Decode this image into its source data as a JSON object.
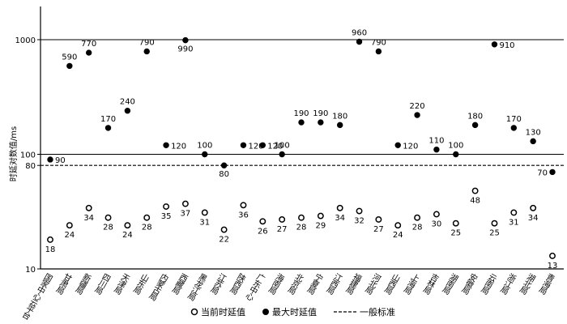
{
  "chart_data": {
    "type": "scatter",
    "ylabel": "时延对数值/ms",
    "yscale": "log",
    "ylim": [
      10,
      2000
    ],
    "yticks": [
      10,
      80,
      100,
      1000
    ],
    "categories": [
      "国家中心云平台",
      "甘肃局",
      "新疆局",
      "四川局",
      "天津局",
      "山东局",
      "内蒙古局",
      "西藏局",
      "黑龙江局",
      "江苏局",
      "陕西局",
      "广东中心",
      "海南局",
      "北京局",
      "宁夏局",
      "江西局",
      "福建局",
      "河北局",
      "山西局",
      "上海局",
      "吉林局",
      "湖南局",
      "安徽局",
      "云南局",
      "浙江局",
      "湖北局",
      "青海局"
    ],
    "series": [
      {
        "name": "当前时延值",
        "marker": "open-circle",
        "values": [
          18,
          24,
          34,
          28,
          24,
          28,
          35,
          37,
          31,
          22,
          36,
          26,
          27,
          28,
          29,
          34,
          32,
          27,
          24,
          28,
          30,
          25,
          48,
          25,
          31,
          34,
          13
        ]
      },
      {
        "name": "最大时延值",
        "marker": "filled-circle",
        "values": [
          90,
          590,
          770,
          170,
          240,
          790,
          120,
          990,
          100,
          80,
          120,
          120,
          100,
          190,
          190,
          180,
          960,
          790,
          120,
          220,
          110,
          100,
          180,
          910,
          170,
          130,
          70
        ]
      }
    ],
    "reference_lines": [
      {
        "value": 1000,
        "style": "solid"
      },
      {
        "value": 100,
        "style": "solid"
      },
      {
        "value": 80,
        "style": "dashed",
        "name": "一般标准"
      }
    ],
    "legend": {
      "position": "bottom",
      "items": [
        "当前时延值",
        "最大时延值",
        "一般标准"
      ]
    }
  }
}
